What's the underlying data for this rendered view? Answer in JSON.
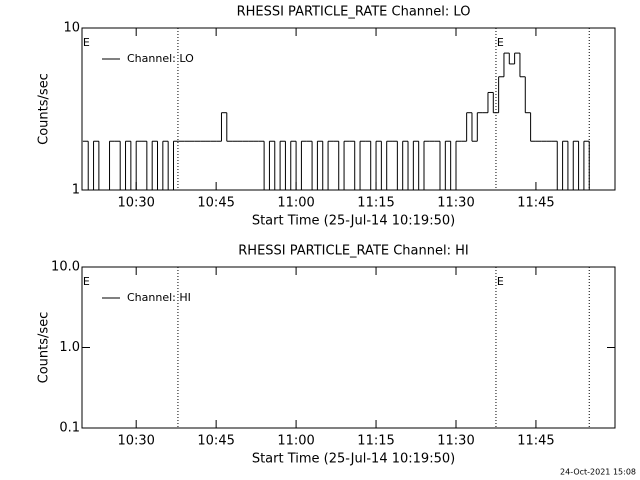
{
  "chart_data": [
    {
      "type": "line",
      "title": "RHESSI PARTICLE_RATE Channel: LO",
      "xlabel": "Start Time (25-Jul-14 10:19:50)",
      "ylabel": "Counts/sec",
      "xlim": [
        "10:19:50",
        "11:59:50"
      ],
      "xticks": [
        "10:30",
        "10:45",
        "11:00",
        "11:15",
        "11:30",
        "11:45"
      ],
      "ylim": [
        1,
        10
      ],
      "yticks": [
        1,
        10
      ],
      "log_y": true,
      "legend": "upper left",
      "vlines": [
        "10:37:50",
        "11:37:30",
        "11:55:00"
      ],
      "annotations": [
        {
          "x": "10:20:00",
          "text": "E"
        },
        {
          "x": "11:37:40",
          "text": "E"
        }
      ],
      "x": [
        "10:20",
        "10:21",
        "10:22",
        "10:23",
        "10:24",
        "10:25",
        "10:26",
        "10:27",
        "10:28",
        "10:29",
        "10:30",
        "10:31",
        "10:32",
        "10:33",
        "10:34",
        "10:35",
        "10:36",
        "10:37",
        "10:38",
        "10:39",
        "10:40",
        "10:41",
        "10:42",
        "10:43",
        "10:44",
        "10:45",
        "10:46",
        "10:47",
        "10:48",
        "10:49",
        "10:50",
        "10:51",
        "10:52",
        "10:53",
        "10:54",
        "10:55",
        "10:56",
        "10:57",
        "10:58",
        "10:59",
        "11:00",
        "11:01",
        "11:02",
        "11:03",
        "11:04",
        "11:05",
        "11:06",
        "11:07",
        "11:08",
        "11:09",
        "11:10",
        "11:11",
        "11:12",
        "11:13",
        "11:14",
        "11:15",
        "11:16",
        "11:17",
        "11:18",
        "11:19",
        "11:20",
        "11:21",
        "11:22",
        "11:23",
        "11:24",
        "11:25",
        "11:26",
        "11:27",
        "11:28",
        "11:29",
        "11:30",
        "11:31",
        "11:32",
        "11:33",
        "11:34",
        "11:35",
        "11:36",
        "11:37",
        "11:38",
        "11:39",
        "11:40",
        "11:41",
        "11:42",
        "11:43",
        "11:44",
        "11:45",
        "11:46",
        "11:47",
        "11:48",
        "11:49",
        "11:50",
        "11:51",
        "11:52",
        "11:53",
        "11:54",
        "11:55"
      ],
      "series": [
        {
          "name": "Channel: LO",
          "color": "#000000",
          "values": [
            2,
            1,
            2,
            1,
            1,
            2,
            2,
            1,
            2,
            1,
            2,
            2,
            1,
            2,
            1,
            2,
            1,
            2,
            2,
            2,
            2,
            2,
            2,
            2,
            2,
            2,
            3,
            2,
            2,
            2,
            2,
            2,
            2,
            2,
            1,
            2,
            1,
            2,
            1,
            2,
            1,
            2,
            2,
            1,
            2,
            1,
            2,
            2,
            1,
            2,
            2,
            1,
            2,
            2,
            1,
            2,
            1,
            2,
            2,
            1,
            2,
            1,
            2,
            1,
            2,
            2,
            2,
            1,
            2,
            1,
            2,
            2,
            3,
            2,
            3,
            3,
            4,
            3,
            5,
            7,
            6,
            7,
            5,
            3,
            2,
            2,
            2,
            2,
            2,
            1,
            2,
            1,
            2,
            1,
            2,
            1
          ]
        }
      ]
    },
    {
      "type": "line",
      "title": "RHESSI PARTICLE_RATE Channel: HI",
      "xlabel": "Start Time (25-Jul-14 10:19:50)",
      "ylabel": "Counts/sec",
      "xlim": [
        "10:19:50",
        "11:59:50"
      ],
      "xticks": [
        "10:30",
        "10:45",
        "11:00",
        "11:15",
        "11:30",
        "11:45"
      ],
      "ylim": [
        0.1,
        10
      ],
      "yticks": [
        0.1,
        {
          "value": 1,
          "label": "1.0"
        },
        {
          "value": 10,
          "label": "10.0"
        }
      ],
      "log_y": true,
      "legend": "upper left",
      "vlines": [
        "10:37:50",
        "11:37:30",
        "11:55:00"
      ],
      "annotations": [
        {
          "x": "10:20:00",
          "text": "E"
        },
        {
          "x": "11:37:40",
          "text": "E"
        }
      ],
      "x": [],
      "series": [
        {
          "name": "Channel: HI",
          "color": "#000000",
          "values": []
        }
      ]
    }
  ],
  "footer": "24-Oct-2021 15:08"
}
